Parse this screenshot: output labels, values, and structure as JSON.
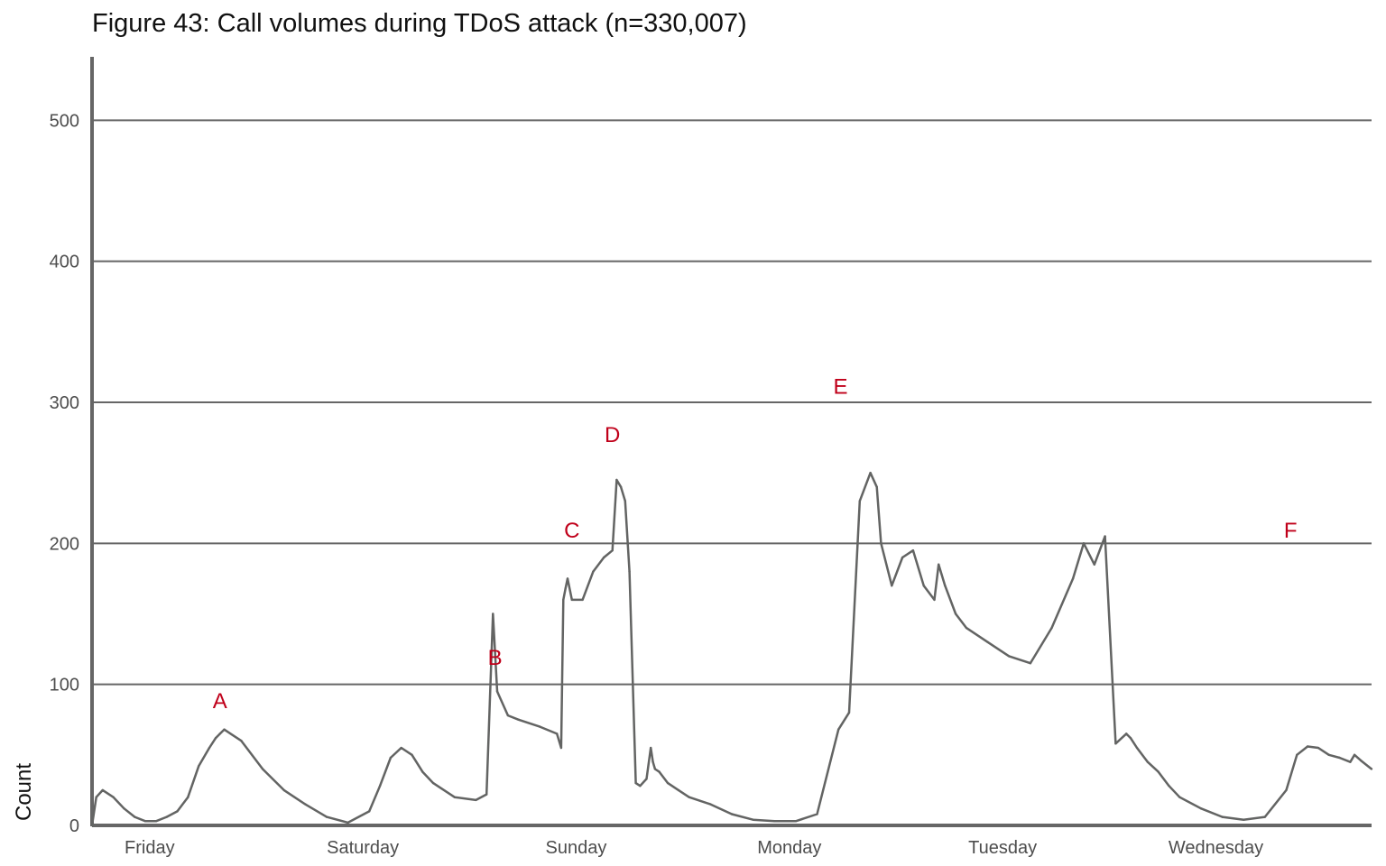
{
  "chart_data": {
    "type": "line",
    "title": "Figure 43: Call volumes during TDoS attack (n=330,007)",
    "xlabel": "",
    "ylabel": "Count",
    "ylim": [
      0,
      545
    ],
    "xlim": [
      0,
      6.0
    ],
    "yticks": [
      0,
      100,
      200,
      300,
      400,
      500
    ],
    "x_tick_labels": [
      {
        "label": "Friday",
        "x": 0.27
      },
      {
        "label": "Saturday",
        "x": 1.27
      },
      {
        "label": "Sunday",
        "x": 2.27
      },
      {
        "label": "Monday",
        "x": 3.27
      },
      {
        "label": "Tuesday",
        "x": 4.27
      },
      {
        "label": "Wednesday",
        "x": 5.27
      }
    ],
    "grid": true,
    "line_color": "#636463",
    "annotation_color": "#c0001a",
    "annotations": [
      {
        "label": "A",
        "x": 0.6,
        "y": 83
      },
      {
        "label": "B",
        "x": 1.89,
        "y": 114
      },
      {
        "label": "C",
        "x": 2.25,
        "y": 204
      },
      {
        "label": "D",
        "x": 2.44,
        "y": 272
      },
      {
        "label": "E",
        "x": 3.51,
        "y": 306
      },
      {
        "label": "F",
        "x": 5.62,
        "y": 204
      }
    ],
    "series": [
      {
        "x": [
          0.0,
          0.02,
          0.05,
          0.1,
          0.15,
          0.2,
          0.25,
          0.3,
          0.35,
          0.4,
          0.45,
          0.5,
          0.55,
          0.58,
          0.6,
          0.62,
          0.7,
          0.8,
          0.9,
          1.0,
          1.1,
          1.2,
          1.3,
          1.35,
          1.4,
          1.45,
          1.5,
          1.55,
          1.6,
          1.7,
          1.8,
          1.85,
          1.88,
          1.9,
          1.95,
          2.0,
          2.1,
          2.18,
          2.2,
          2.21,
          2.22,
          2.23,
          2.25,
          2.3,
          2.35,
          2.4,
          2.44,
          2.46,
          2.48,
          2.5,
          2.52,
          2.55,
          2.57,
          2.6,
          2.62,
          2.63,
          2.64,
          2.66,
          2.7,
          2.75,
          2.8,
          2.9,
          3.0,
          3.1,
          3.2,
          3.3,
          3.4,
          3.5,
          3.55,
          3.6,
          3.65,
          3.68,
          3.7,
          3.75,
          3.8,
          3.85,
          3.9,
          3.95,
          3.97,
          4.0,
          4.05,
          4.1,
          4.2,
          4.3,
          4.4,
          4.5,
          4.6,
          4.65,
          4.7,
          4.75,
          4.8,
          4.85,
          4.87,
          4.9,
          4.95,
          5.0,
          5.05,
          5.1,
          5.2,
          5.3,
          5.4,
          5.5,
          5.6,
          5.65,
          5.7,
          5.75,
          5.8,
          5.85,
          5.9,
          5.92,
          5.95,
          6.0
        ],
        "y": [
          0,
          20,
          25,
          20,
          12,
          6,
          3,
          3,
          6,
          10,
          20,
          42,
          55,
          62,
          65,
          68,
          60,
          40,
          25,
          15,
          6,
          2,
          10,
          28,
          48,
          55,
          50,
          38,
          30,
          20,
          18,
          22,
          150,
          95,
          78,
          75,
          70,
          65,
          55,
          160,
          168,
          175,
          160,
          160,
          180,
          190,
          195,
          245,
          240,
          230,
          180,
          30,
          28,
          33,
          55,
          45,
          40,
          38,
          30,
          25,
          20,
          15,
          8,
          4,
          3,
          3,
          8,
          68,
          80,
          230,
          250,
          240,
          200,
          170,
          190,
          195,
          170,
          160,
          185,
          170,
          150,
          140,
          130,
          120,
          115,
          140,
          175,
          200,
          185,
          205,
          58,
          65,
          62,
          55,
          45,
          38,
          28,
          20,
          12,
          6,
          4,
          6,
          25,
          50,
          56,
          55,
          50,
          48,
          45,
          50,
          46,
          40
        ]
      }
    ]
  }
}
